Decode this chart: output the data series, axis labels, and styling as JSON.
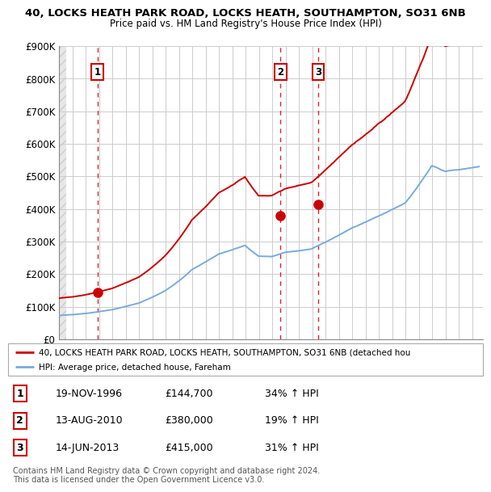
{
  "title": "40, LOCKS HEATH PARK ROAD, LOCKS HEATH, SOUTHAMPTON, SO31 6NB",
  "subtitle": "Price paid vs. HM Land Registry's House Price Index (HPI)",
  "ylim": [
    0,
    900000
  ],
  "yticks": [
    0,
    100000,
    200000,
    300000,
    400000,
    500000,
    600000,
    700000,
    800000,
    900000
  ],
  "ytick_labels": [
    "£0",
    "£100K",
    "£200K",
    "£300K",
    "£400K",
    "£500K",
    "£600K",
    "£700K",
    "£800K",
    "£900K"
  ],
  "xlim_start": 1994.0,
  "xlim_end": 2025.8,
  "sale_dates": [
    1996.89,
    2010.62,
    2013.45
  ],
  "sale_prices": [
    144700,
    380000,
    415000
  ],
  "sale_labels": [
    "1",
    "2",
    "3"
  ],
  "red_line_color": "#cc0000",
  "blue_line_color": "#7aaadd",
  "marker_color": "#cc0000",
  "vline_color": "#cc0000",
  "grid_color": "#cccccc",
  "legend_red_label": "40, LOCKS HEATH PARK ROAD, LOCKS HEATH, SOUTHAMPTON, SO31 6NB (detached hou",
  "legend_blue_label": "HPI: Average price, detached house, Fareham",
  "table_rows": [
    {
      "num": "1",
      "date": "19-NOV-1996",
      "price": "£144,700",
      "hpi": "34% ↑ HPI"
    },
    {
      "num": "2",
      "date": "13-AUG-2010",
      "price": "£380,000",
      "hpi": "19% ↑ HPI"
    },
    {
      "num": "3",
      "date": "14-JUN-2013",
      "price": "£415,000",
      "hpi": "31% ↑ HPI"
    }
  ],
  "footer": "Contains HM Land Registry data © Crown copyright and database right 2024.\nThis data is licensed under the Open Government Licence v3.0."
}
